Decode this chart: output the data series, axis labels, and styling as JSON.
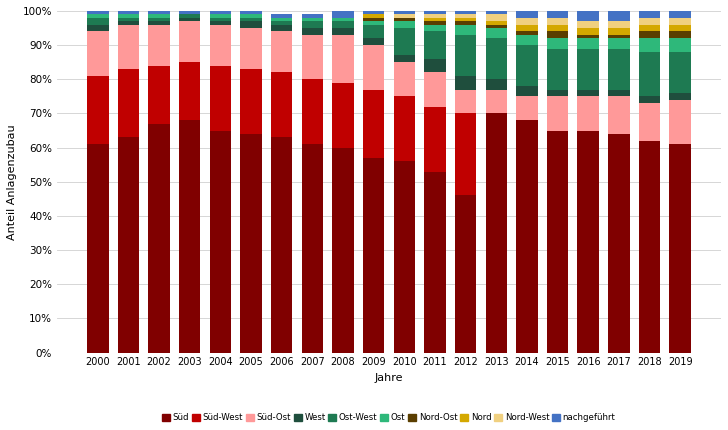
{
  "years": [
    2000,
    2001,
    2002,
    2003,
    2004,
    2005,
    2006,
    2007,
    2008,
    2009,
    2010,
    2011,
    2012,
    2013,
    2014,
    2015,
    2016,
    2017,
    2018,
    2019
  ],
  "series": {
    "Süd": [
      61,
      63,
      67,
      68,
      65,
      64,
      63,
      61,
      60,
      57,
      56,
      53,
      46,
      70,
      68,
      65,
      65,
      64,
      62,
      61
    ],
    "Süd-West": [
      20,
      20,
      17,
      17,
      19,
      19,
      19,
      19,
      19,
      20,
      19,
      19,
      24,
      0,
      0,
      0,
      0,
      0,
      0,
      0
    ],
    "Süd-Ost": [
      13,
      13,
      12,
      12,
      12,
      12,
      12,
      13,
      14,
      13,
      10,
      10,
      7,
      7,
      7,
      10,
      10,
      11,
      11,
      13
    ],
    "West": [
      2,
      1,
      1,
      1,
      1,
      2,
      2,
      2,
      2,
      2,
      2,
      4,
      4,
      3,
      3,
      2,
      2,
      2,
      2,
      2
    ],
    "Ost-West": [
      2,
      1,
      1,
      1,
      1,
      1,
      1,
      2,
      2,
      4,
      8,
      8,
      12,
      12,
      12,
      12,
      12,
      12,
      13,
      12
    ],
    "Ost": [
      1,
      1,
      1,
      0,
      1,
      1,
      1,
      1,
      1,
      1,
      2,
      2,
      3,
      3,
      3,
      3,
      3,
      3,
      4,
      4
    ],
    "Nord-Ost": [
      0,
      0,
      0,
      0,
      0,
      0,
      0,
      0,
      0,
      1,
      1,
      1,
      1,
      1,
      1,
      2,
      1,
      1,
      2,
      2
    ],
    "Nord": [
      0,
      0,
      0,
      0,
      0,
      0,
      0,
      0,
      0,
      1,
      0,
      1,
      1,
      1,
      2,
      2,
      2,
      2,
      2,
      2
    ],
    "Nord-West": [
      0,
      0,
      0,
      0,
      0,
      0,
      0,
      0,
      0,
      0,
      1,
      1,
      1,
      2,
      2,
      2,
      2,
      2,
      2,
      2
    ],
    "nachgeführt": [
      1,
      1,
      1,
      1,
      1,
      1,
      1,
      1,
      2,
      1,
      1,
      1,
      1,
      1,
      2,
      2,
      3,
      3,
      2,
      2
    ]
  },
  "colors": {
    "Süd": "#800000",
    "Süd-West": "#c00000",
    "Süd-Ost": "#ff9999",
    "West": "#1f4e3d",
    "Ost-West": "#1e7a52",
    "Ost": "#2eb87a",
    "Nord-Ost": "#5a3e00",
    "Nord": "#d4a800",
    "Nord-West": "#f0d080",
    "nachgeführt": "#4472c4"
  },
  "ylabel": "Anteil Anlagenzubau",
  "xlabel": "Jahre",
  "ytick_vals": [
    0,
    10,
    20,
    30,
    40,
    50,
    60,
    70,
    80,
    90,
    100
  ],
  "background_color": "#ffffff",
  "bar_width": 0.7,
  "figsize": [
    7.28,
    4.3
  ],
  "dpi": 100
}
